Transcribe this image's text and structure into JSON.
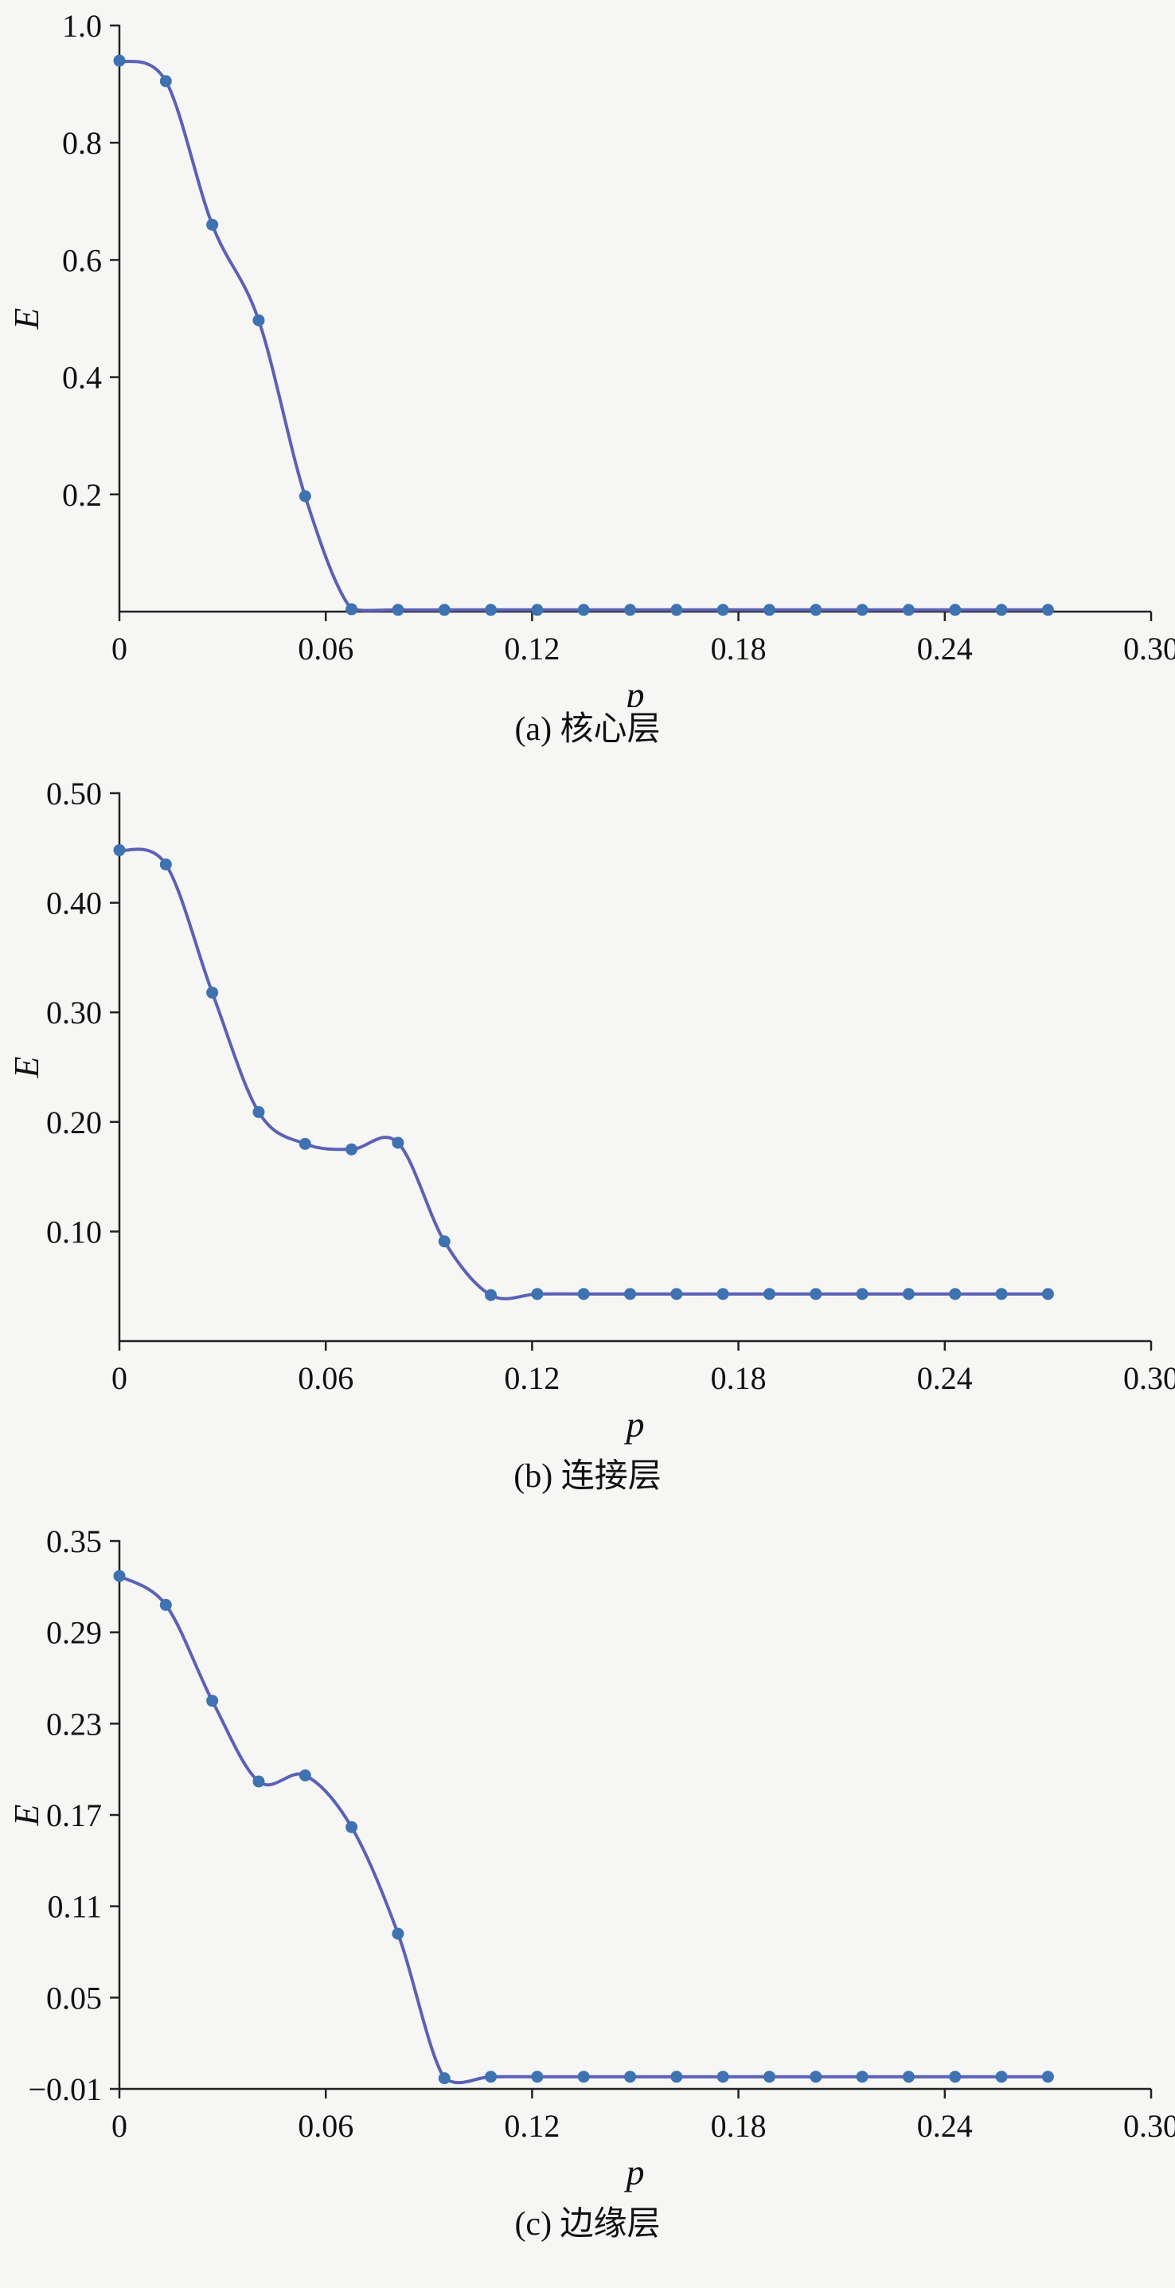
{
  "page": {
    "background": "#f6f6f5",
    "text_color": "#111111"
  },
  "chart_data": [
    {
      "type": "line",
      "caption": "(a) 核心层",
      "xlabel": "p",
      "ylabel": "E",
      "xlim": [
        0,
        0.3
      ],
      "ylim": [
        0,
        1.0
      ],
      "xticks": [
        0,
        0.06,
        0.12,
        0.18,
        0.24,
        0.3
      ],
      "xtick_labels": [
        "0",
        "0.06",
        "0.12",
        "0.18",
        "0.24",
        "0.30"
      ],
      "yticks": [
        0.2,
        0.4,
        0.6,
        0.8,
        1.0
      ],
      "ytick_labels": [
        "0.2",
        "0.4",
        "0.6",
        "0.8",
        "1.0"
      ],
      "line_color": "#5b61b4",
      "marker_color": "#3e72b0",
      "x": [
        0,
        0.0135,
        0.027,
        0.0405,
        0.054,
        0.0675,
        0.081,
        0.0945,
        0.108,
        0.1215,
        0.135,
        0.1485,
        0.162,
        0.1755,
        0.189,
        0.2025,
        0.216,
        0.2295,
        0.243,
        0.2565,
        0.27
      ],
      "y": [
        0.94,
        0.905,
        0.66,
        0.497,
        0.197,
        0.004,
        0.003,
        0.003,
        0.003,
        0.003,
        0.003,
        0.003,
        0.003,
        0.003,
        0.003,
        0.003,
        0.003,
        0.003,
        0.003,
        0.003,
        0.003
      ]
    },
    {
      "type": "line",
      "caption": "(b) 连接层",
      "xlabel": "p",
      "ylabel": "E",
      "xlim": [
        0,
        0.3
      ],
      "ylim": [
        0,
        0.5
      ],
      "xticks": [
        0,
        0.06,
        0.12,
        0.18,
        0.24,
        0.3
      ],
      "xtick_labels": [
        "0",
        "0.06",
        "0.12",
        "0.18",
        "0.24",
        "0.30"
      ],
      "yticks": [
        0.1,
        0.2,
        0.3,
        0.4,
        0.5
      ],
      "ytick_labels": [
        "0.10",
        "0.20",
        "0.30",
        "0.40",
        "0.50"
      ],
      "line_color": "#5b61b4",
      "marker_color": "#3e72b0",
      "x": [
        0,
        0.0135,
        0.027,
        0.0405,
        0.054,
        0.0675,
        0.081,
        0.0945,
        0.108,
        0.1215,
        0.135,
        0.1485,
        0.162,
        0.1755,
        0.189,
        0.2025,
        0.216,
        0.2295,
        0.243,
        0.2565,
        0.27
      ],
      "y": [
        0.448,
        0.435,
        0.318,
        0.209,
        0.18,
        0.175,
        0.181,
        0.091,
        0.042,
        0.043,
        0.043,
        0.043,
        0.043,
        0.043,
        0.043,
        0.043,
        0.043,
        0.043,
        0.043,
        0.043,
        0.043
      ]
    },
    {
      "type": "line",
      "caption": "(c) 边缘层",
      "xlabel": "p",
      "ylabel": "E",
      "xlim": [
        0,
        0.3
      ],
      "ylim": [
        -0.01,
        0.35
      ],
      "xticks": [
        0,
        0.06,
        0.12,
        0.18,
        0.24,
        0.3
      ],
      "xtick_labels": [
        "0",
        "0.06",
        "0.12",
        "0.18",
        "0.24",
        "0.30"
      ],
      "yticks": [
        -0.01,
        0.05,
        0.11,
        0.17,
        0.23,
        0.29,
        0.35
      ],
      "ytick_labels": [
        "−0.01",
        "0.05",
        "0.11",
        "0.17",
        "0.23",
        "0.29",
        "0.35"
      ],
      "line_color": "#5b61b4",
      "marker_color": "#3e72b0",
      "x": [
        0,
        0.0135,
        0.027,
        0.0405,
        0.054,
        0.0675,
        0.081,
        0.0945,
        0.108,
        0.1215,
        0.135,
        0.1485,
        0.162,
        0.1755,
        0.189,
        0.2025,
        0.216,
        0.2295,
        0.243,
        0.2565,
        0.27
      ],
      "y": [
        0.327,
        0.308,
        0.245,
        0.192,
        0.196,
        0.162,
        0.092,
        -0.003,
        -0.002,
        -0.002,
        -0.002,
        -0.002,
        -0.002,
        -0.002,
        -0.002,
        -0.002,
        -0.002,
        -0.002,
        -0.002,
        -0.002,
        -0.002
      ]
    }
  ]
}
